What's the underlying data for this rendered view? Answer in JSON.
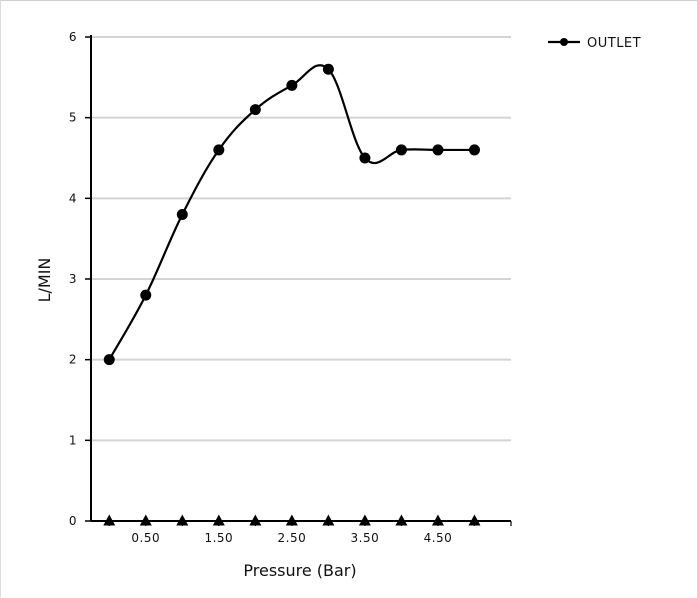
{
  "chart_data": {
    "type": "line",
    "xlabel": "Pressure (Bar)",
    "ylabel": "L/MIN",
    "ylim": [
      0,
      6
    ],
    "xlim": [
      -0.25,
      5.5
    ],
    "y_ticks": [
      0,
      1,
      2,
      3,
      4,
      5,
      6
    ],
    "x_tick_labels": [
      "0.50",
      "1.50",
      "2.50",
      "3.50",
      "4.50"
    ],
    "x_tick_values": [
      0.5,
      1.5,
      2.5,
      3.5,
      4.5
    ],
    "grid": "horizontal",
    "legend_position": "top-right",
    "series": [
      {
        "name": "OUTLET",
        "color": "#000000",
        "marker": "circle",
        "x": [
          0,
          0.5,
          1,
          1.5,
          2,
          2.5,
          3,
          3.5,
          4,
          4.5,
          5
        ],
        "y": [
          2.0,
          2.8,
          3.8,
          4.6,
          5.1,
          5.4,
          5.6,
          4.5,
          4.6,
          4.6,
          4.6
        ]
      },
      {
        "color": "#000000",
        "marker": "triangle",
        "x": [
          0,
          0.5,
          1,
          1.5,
          2,
          2.5,
          3,
          3.5,
          4,
          4.5,
          5
        ],
        "y": [
          0,
          0,
          0,
          0,
          0,
          0,
          0,
          0,
          0,
          0,
          0
        ]
      }
    ]
  }
}
